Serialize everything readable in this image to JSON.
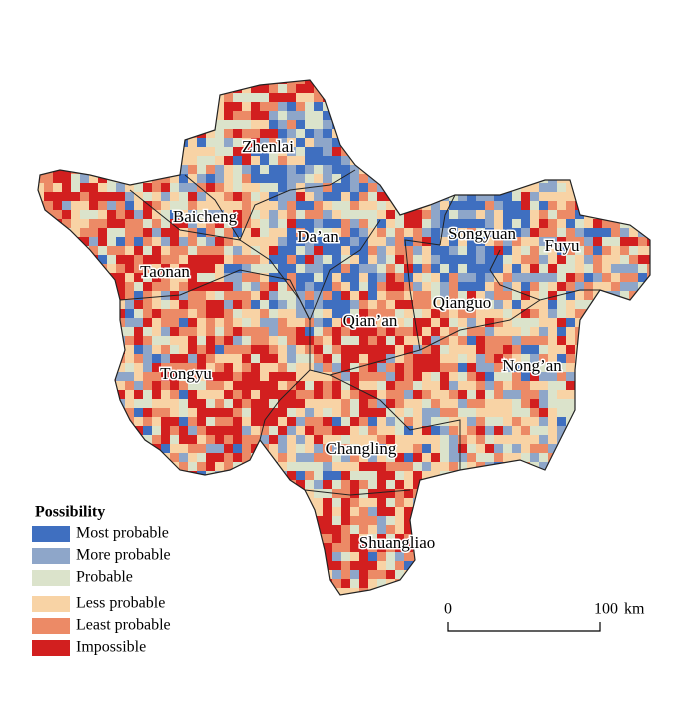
{
  "regions": [
    {
      "label": "Zhenlai"
    },
    {
      "label": "Baicheng"
    },
    {
      "label": "Da’an"
    },
    {
      "label": "Songyuan"
    },
    {
      "label": "Fuyu"
    },
    {
      "label": "Taonan"
    },
    {
      "label": "Qian’an"
    },
    {
      "label": "Qianguo"
    },
    {
      "label": "Nong’an"
    },
    {
      "label": "Tongyu"
    },
    {
      "label": "Changling"
    },
    {
      "label": "Shuangliao"
    }
  ],
  "legend": {
    "title": "Possibility",
    "items": [
      {
        "label": "Most probable",
        "color": "#3f6fc0"
      },
      {
        "label": "More probable",
        "color": "#8ea6c9"
      },
      {
        "label": "Probable",
        "color": "#dbe3cb"
      },
      {
        "label": "Less probable",
        "color": "#f8d3a5"
      },
      {
        "label": "Least probable",
        "color": "#ec8a66"
      },
      {
        "label": "Impossible",
        "color": "#d21f1f"
      }
    ]
  },
  "scale_bar": {
    "ticks": [
      0,
      100
    ],
    "unit": "km"
  }
}
